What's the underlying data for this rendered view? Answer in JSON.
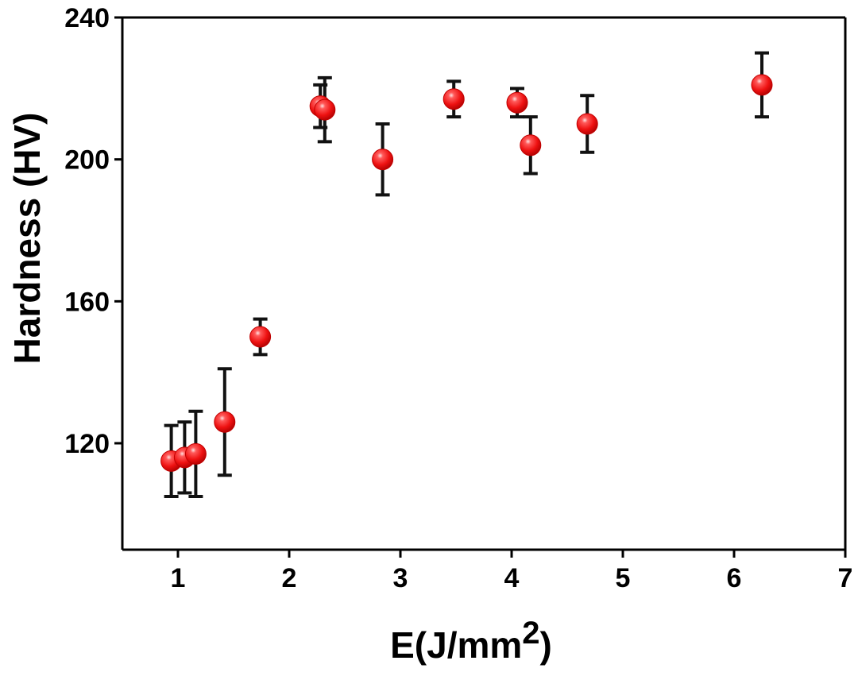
{
  "chart_data": {
    "type": "scatter",
    "title": "",
    "xlabel_main": "E(J/mm",
    "xlabel_sup": "2",
    "xlabel_tail": ")",
    "ylabel": "Hardness (HV)",
    "xlim": [
      0.5,
      7
    ],
    "ylim": [
      90,
      240
    ],
    "xticks": [
      1,
      2,
      3,
      4,
      5,
      6,
      7
    ],
    "yticks": [
      120,
      160,
      200,
      240
    ],
    "grid": false,
    "legend": "none",
    "marker_color": "#ee1111",
    "marker_highlight": "#ffd0d0",
    "series": [
      {
        "points": [
          {
            "x": 0.94,
            "y": 115,
            "err": 10
          },
          {
            "x": 1.06,
            "y": 116,
            "err": 10
          },
          {
            "x": 1.16,
            "y": 117,
            "err": 12
          },
          {
            "x": 1.42,
            "y": 126,
            "err": 15
          },
          {
            "x": 1.74,
            "y": 150,
            "err": 5
          },
          {
            "x": 2.28,
            "y": 215,
            "err": 6
          },
          {
            "x": 2.32,
            "y": 214,
            "err": 9
          },
          {
            "x": 2.84,
            "y": 200,
            "err": 10
          },
          {
            "x": 3.48,
            "y": 217,
            "err": 5
          },
          {
            "x": 4.05,
            "y": 216,
            "err": 4
          },
          {
            "x": 4.17,
            "y": 204,
            "err": 8
          },
          {
            "x": 4.68,
            "y": 210,
            "err": 8
          },
          {
            "x": 6.25,
            "y": 221,
            "err": 9
          }
        ]
      }
    ]
  }
}
